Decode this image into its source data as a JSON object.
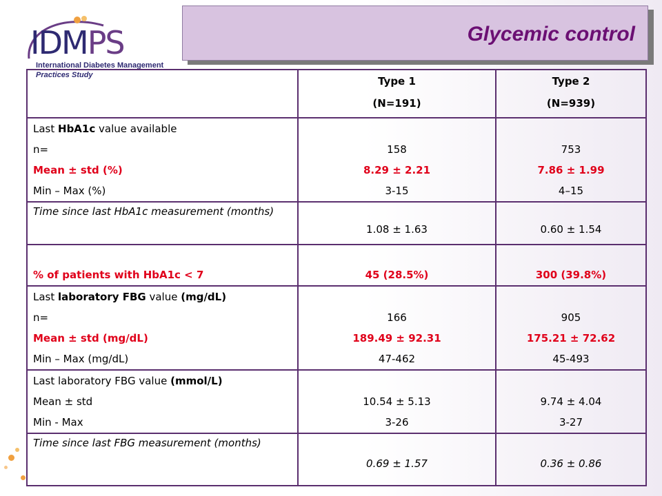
{
  "title": "Glycemic control",
  "logo": {
    "brand_a": "IDM",
    "brand_b": "PS",
    "line1": "International Diabetes Management",
    "line2": "Practices Study"
  },
  "table": {
    "headers": [
      {
        "line1": "Type 1",
        "line2": "(N=191)"
      },
      {
        "line1": "Type 2",
        "line2": "(N=939)"
      }
    ],
    "hba1c": {
      "label_pre": "Last ",
      "label_bold": "HbA1c",
      "label_post": " value available",
      "n_label": "n=",
      "mean_label": "Mean ± std (%)",
      "minmax_label": "Min – Max (%)",
      "type1": {
        "n": "158",
        "mean": "8.29 ± 2.21",
        "minmax": "3-15"
      },
      "type2": {
        "n": "753",
        "mean": "7.86 ± 1.99",
        "minmax": "4–15"
      }
    },
    "hba1c_time": {
      "label": "Time since last HbA1c measurement (months)",
      "type1": "1.08 ± 1.63",
      "type2": "0.60 ± 1.54"
    },
    "hba1c_target": {
      "label": "% of patients with HbA1c < 7",
      "type1": "45 (28.5%)",
      "type2": "300 (39.8%)"
    },
    "fbg_mg": {
      "label_pre": "Last ",
      "label_bold": "laboratory FBG",
      "label_mid": " value ",
      "label_unit": "(mg/dL)",
      "n_label": "n=",
      "mean_label": "Mean ± std (mg/dL)",
      "minmax_label": "Min – Max (mg/dL)",
      "type1": {
        "n": "166",
        "mean": "189.49 ± 92.31",
        "minmax": "47-462"
      },
      "type2": {
        "n": "905",
        "mean": "175.21 ± 72.62",
        "minmax": "45-493"
      }
    },
    "fbg_mmol": {
      "label_pre": "Last laboratory FBG value ",
      "label_unit": "(mmol/L)",
      "mean_label": "Mean ± std",
      "minmax_label": "Min - Max",
      "type1": {
        "mean": "10.54 ± 5.13",
        "minmax": "3-26"
      },
      "type2": {
        "mean": "9.74 ± 4.04",
        "minmax": "3-27"
      }
    },
    "fbg_time": {
      "label": "Time since last FBG measurement (months)",
      "type1": "0.69 ± 1.57",
      "type2": "0.36 ± 0.86"
    }
  },
  "colors": {
    "title": "#6b0f73",
    "accent_red": "#e0001a",
    "title_box": "#d8c3e0",
    "border": "#5a2e6e"
  }
}
